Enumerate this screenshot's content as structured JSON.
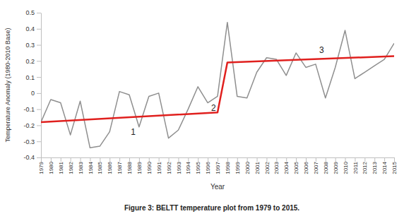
{
  "chart_data": {
    "type": "line",
    "title": "Figure 3: BELTT temperature plot from 1979 to 2015.",
    "x_label": "Year",
    "y_label": "Temperature Anomaly (1980-2010 Base)",
    "x": [
      1979,
      1980,
      1981,
      1982,
      1983,
      1984,
      1985,
      1986,
      1987,
      1988,
      1989,
      1990,
      1991,
      1992,
      1993,
      1994,
      1995,
      1996,
      1997,
      1998,
      1999,
      2000,
      2001,
      2002,
      2003,
      2004,
      2005,
      2006,
      2007,
      2008,
      2009,
      2010,
      2011,
      2012,
      2013,
      2014,
      2015
    ],
    "series": [
      {
        "color": "#8f8f8f",
        "values": [
          -0.18,
          -0.04,
          -0.06,
          -0.26,
          -0.05,
          -0.34,
          -0.33,
          -0.24,
          0.01,
          -0.01,
          -0.21,
          -0.02,
          0.0,
          -0.28,
          -0.23,
          -0.1,
          0.04,
          -0.06,
          -0.02,
          0.44,
          -0.02,
          -0.03,
          0.13,
          0.22,
          0.21,
          0.11,
          0.25,
          0.16,
          0.18,
          -0.03,
          0.16,
          0.39,
          0.09,
          0.13,
          0.17,
          0.21,
          0.31
        ]
      },
      {
        "color": "#e0201e",
        "x": [
          1979,
          1997,
          1998,
          2015
        ],
        "values": [
          -0.18,
          -0.12,
          0.19,
          0.23
        ]
      }
    ],
    "annotations": [
      {
        "text": "1",
        "x": 1988.4,
        "y": -0.24
      },
      {
        "text": "2",
        "x": 1996.6,
        "y": -0.09
      },
      {
        "text": "3",
        "x": 2007.6,
        "y": 0.27
      }
    ],
    "xlim": [
      1979,
      2015
    ],
    "xticks": [
      1979,
      1980,
      1981,
      1982,
      1983,
      1984,
      1985,
      1986,
      1987,
      1988,
      1989,
      1990,
      1991,
      1992,
      1993,
      1994,
      1995,
      1996,
      1997,
      1998,
      1999,
      2000,
      2001,
      2002,
      2003,
      2004,
      2005,
      2006,
      2007,
      2008,
      2009,
      2010,
      2011,
      2012,
      2013,
      2014,
      2015
    ],
    "ylim": [
      -0.4,
      0.5
    ],
    "yticks": [
      -0.4,
      -0.3,
      -0.2,
      -0.1,
      0,
      0.1,
      0.2,
      0.3,
      0.4,
      0.5
    ],
    "grid": false
  }
}
